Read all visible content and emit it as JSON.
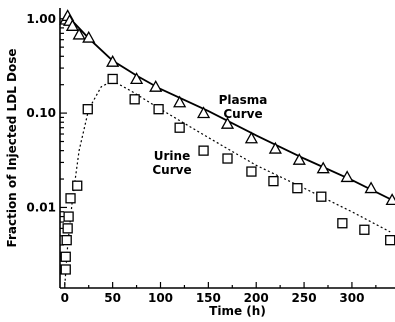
{
  "chart_data": {
    "type": "scatter",
    "xlabel": "Time (h)",
    "ylabel": "Fraction of Injected LDL Dose",
    "xlim": [
      -5,
      345
    ],
    "ylim": [
      0.0014,
      1.3
    ],
    "yscale": "log",
    "x_ticks": [
      0,
      50,
      100,
      150,
      200,
      250,
      300
    ],
    "y_ticks": [
      {
        "value": 1.0,
        "label": "1.00"
      },
      {
        "value": 0.1,
        "label": "0.10"
      },
      {
        "value": 0.01,
        "label": "0.01"
      }
    ],
    "grid": false,
    "series": [
      {
        "name": "Plasma Curve",
        "marker": "triangle",
        "line": "solid",
        "points": [
          {
            "x": 1,
            "y": 0.98
          },
          {
            "x": 3,
            "y": 1.07
          },
          {
            "x": 5,
            "y": 0.95
          },
          {
            "x": 8,
            "y": 0.84
          },
          {
            "x": 15,
            "y": 0.68
          },
          {
            "x": 25,
            "y": 0.63
          },
          {
            "x": 50,
            "y": 0.35
          },
          {
            "x": 75,
            "y": 0.23
          },
          {
            "x": 95,
            "y": 0.19
          },
          {
            "x": 120,
            "y": 0.13
          },
          {
            "x": 145,
            "y": 0.1
          },
          {
            "x": 170,
            "y": 0.077
          },
          {
            "x": 195,
            "y": 0.054
          },
          {
            "x": 220,
            "y": 0.042
          },
          {
            "x": 245,
            "y": 0.032
          },
          {
            "x": 270,
            "y": 0.026
          },
          {
            "x": 295,
            "y": 0.021
          },
          {
            "x": 320,
            "y": 0.016
          },
          {
            "x": 342,
            "y": 0.012
          }
        ],
        "fit": [
          {
            "x": 0,
            "y": 0.98
          },
          {
            "x": 3,
            "y": 1.08
          },
          {
            "x": 10,
            "y": 0.9
          },
          {
            "x": 25,
            "y": 0.62
          },
          {
            "x": 50,
            "y": 0.36
          },
          {
            "x": 75,
            "y": 0.25
          },
          {
            "x": 100,
            "y": 0.18
          },
          {
            "x": 150,
            "y": 0.105
          },
          {
            "x": 200,
            "y": 0.058
          },
          {
            "x": 250,
            "y": 0.033
          },
          {
            "x": 300,
            "y": 0.0195
          },
          {
            "x": 342,
            "y": 0.012
          }
        ]
      },
      {
        "name": "Urine Curve",
        "marker": "square",
        "line": "dotted/dashed",
        "points": [
          {
            "x": 1,
            "y": 0.0022
          },
          {
            "x": 1,
            "y": 0.003
          },
          {
            "x": 2,
            "y": 0.0045
          },
          {
            "x": 3,
            "y": 0.006
          },
          {
            "x": 4,
            "y": 0.008
          },
          {
            "x": 6,
            "y": 0.0125
          },
          {
            "x": 13,
            "y": 0.017
          },
          {
            "x": 24,
            "y": 0.11
          },
          {
            "x": 50,
            "y": 0.23
          },
          {
            "x": 73,
            "y": 0.14
          },
          {
            "x": 98,
            "y": 0.11
          },
          {
            "x": 120,
            "y": 0.07
          },
          {
            "x": 145,
            "y": 0.04
          },
          {
            "x": 170,
            "y": 0.033
          },
          {
            "x": 195,
            "y": 0.024
          },
          {
            "x": 218,
            "y": 0.019
          },
          {
            "x": 243,
            "y": 0.016
          },
          {
            "x": 268,
            "y": 0.013
          },
          {
            "x": 290,
            "y": 0.0068
          },
          {
            "x": 313,
            "y": 0.0058
          },
          {
            "x": 340,
            "y": 0.0045
          }
        ],
        "fit": [
          {
            "x": 0,
            "y": 0.0015
          },
          {
            "x": 3,
            "y": 0.004
          },
          {
            "x": 8,
            "y": 0.012
          },
          {
            "x": 15,
            "y": 0.04
          },
          {
            "x": 25,
            "y": 0.11
          },
          {
            "x": 38,
            "y": 0.19
          },
          {
            "x": 50,
            "y": 0.22
          },
          {
            "x": 70,
            "y": 0.17
          },
          {
            "x": 100,
            "y": 0.11
          },
          {
            "x": 150,
            "y": 0.055
          },
          {
            "x": 200,
            "y": 0.028
          },
          {
            "x": 250,
            "y": 0.016
          },
          {
            "x": 300,
            "y": 0.009
          },
          {
            "x": 340,
            "y": 0.0055
          }
        ]
      }
    ],
    "annotations": [
      {
        "lines": [
          "Plasma",
          "Curve"
        ],
        "series": "Plasma Curve"
      },
      {
        "lines": [
          "Urine",
          "Curve"
        ],
        "series": "Urine Curve"
      }
    ]
  }
}
